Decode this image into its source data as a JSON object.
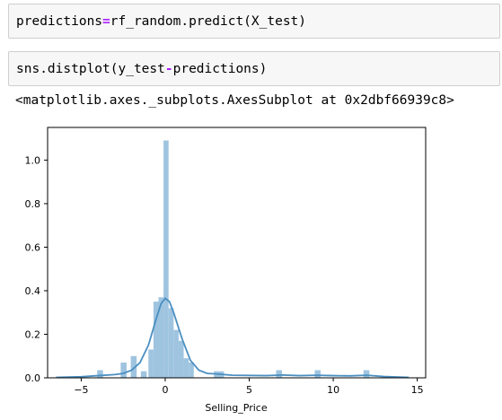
{
  "cells": [
    {
      "parts": [
        {
          "text": "predictions",
          "op": false
        },
        {
          "text": "=",
          "op": true
        },
        {
          "text": "rf_random.predict(X_test)",
          "op": false
        }
      ]
    },
    {
      "parts": [
        {
          "text": "sns.distplot(y_test",
          "op": false
        },
        {
          "text": "-",
          "op": true
        },
        {
          "text": "predictions)",
          "op": false
        }
      ]
    }
  ],
  "output": "<matplotlib.axes._subplots.AxesSubplot at 0x2dbf66939c8>",
  "chart_data": {
    "type": "bar",
    "xlabel": "Selling_Price",
    "ylabel": "",
    "xlim": [
      -7,
      15.5
    ],
    "ylim": [
      0,
      1.15
    ],
    "xticks": [
      -5,
      0,
      5,
      10,
      15
    ],
    "xtick_labels": [
      "−5",
      "0",
      "5",
      "10",
      "15"
    ],
    "yticks": [
      0.0,
      0.2,
      0.4,
      0.6,
      0.8,
      1.0
    ],
    "ytick_labels": [
      "0.0",
      "0.2",
      "0.4",
      "0.6",
      "0.8",
      "1.0"
    ],
    "bar_color": "#9ec4e0",
    "kde_color": "#4a8fc0",
    "hist_bins": [
      {
        "x0": -4.05,
        "x1": -3.7,
        "density": 0.035
      },
      {
        "x0": -2.65,
        "x1": -2.3,
        "density": 0.07
      },
      {
        "x0": -2.05,
        "x1": -1.7,
        "density": 0.1
      },
      {
        "x0": -1.45,
        "x1": -1.1,
        "density": 0.03
      },
      {
        "x0": -1.0,
        "x1": -0.7,
        "density": 0.13
      },
      {
        "x0": -0.7,
        "x1": -0.4,
        "density": 0.35
      },
      {
        "x0": -0.4,
        "x1": -0.1,
        "density": 0.37
      },
      {
        "x0": -0.1,
        "x1": 0.2,
        "density": 1.09
      },
      {
        "x0": 0.2,
        "x1": 0.5,
        "density": 0.32
      },
      {
        "x0": 0.5,
        "x1": 0.8,
        "density": 0.22
      },
      {
        "x0": 0.8,
        "x1": 1.1,
        "density": 0.17
      },
      {
        "x0": 1.1,
        "x1": 1.4,
        "density": 0.09
      },
      {
        "x0": 1.4,
        "x1": 1.7,
        "density": 0.07
      },
      {
        "x0": 2.9,
        "x1": 3.5,
        "density": 0.03
      },
      {
        "x0": 6.6,
        "x1": 6.95,
        "density": 0.035
      },
      {
        "x0": 8.9,
        "x1": 9.25,
        "density": 0.035
      },
      {
        "x0": 11.8,
        "x1": 12.15,
        "density": 0.035
      }
    ],
    "kde": {
      "x": [
        -6.5,
        -5,
        -4,
        -3,
        -2.5,
        -2,
        -1.5,
        -1,
        -0.5,
        -0.25,
        0,
        0.25,
        0.5,
        1,
        1.5,
        2,
        2.5,
        3,
        4,
        6,
        7,
        8,
        9,
        10,
        11,
        12,
        13,
        14.5
      ],
      "y": [
        0.002,
        0.005,
        0.01,
        0.015,
        0.02,
        0.035,
        0.07,
        0.15,
        0.28,
        0.34,
        0.365,
        0.35,
        0.3,
        0.18,
        0.08,
        0.035,
        0.02,
        0.018,
        0.012,
        0.01,
        0.013,
        0.01,
        0.012,
        0.01,
        0.009,
        0.012,
        0.006,
        0.002
      ]
    }
  }
}
